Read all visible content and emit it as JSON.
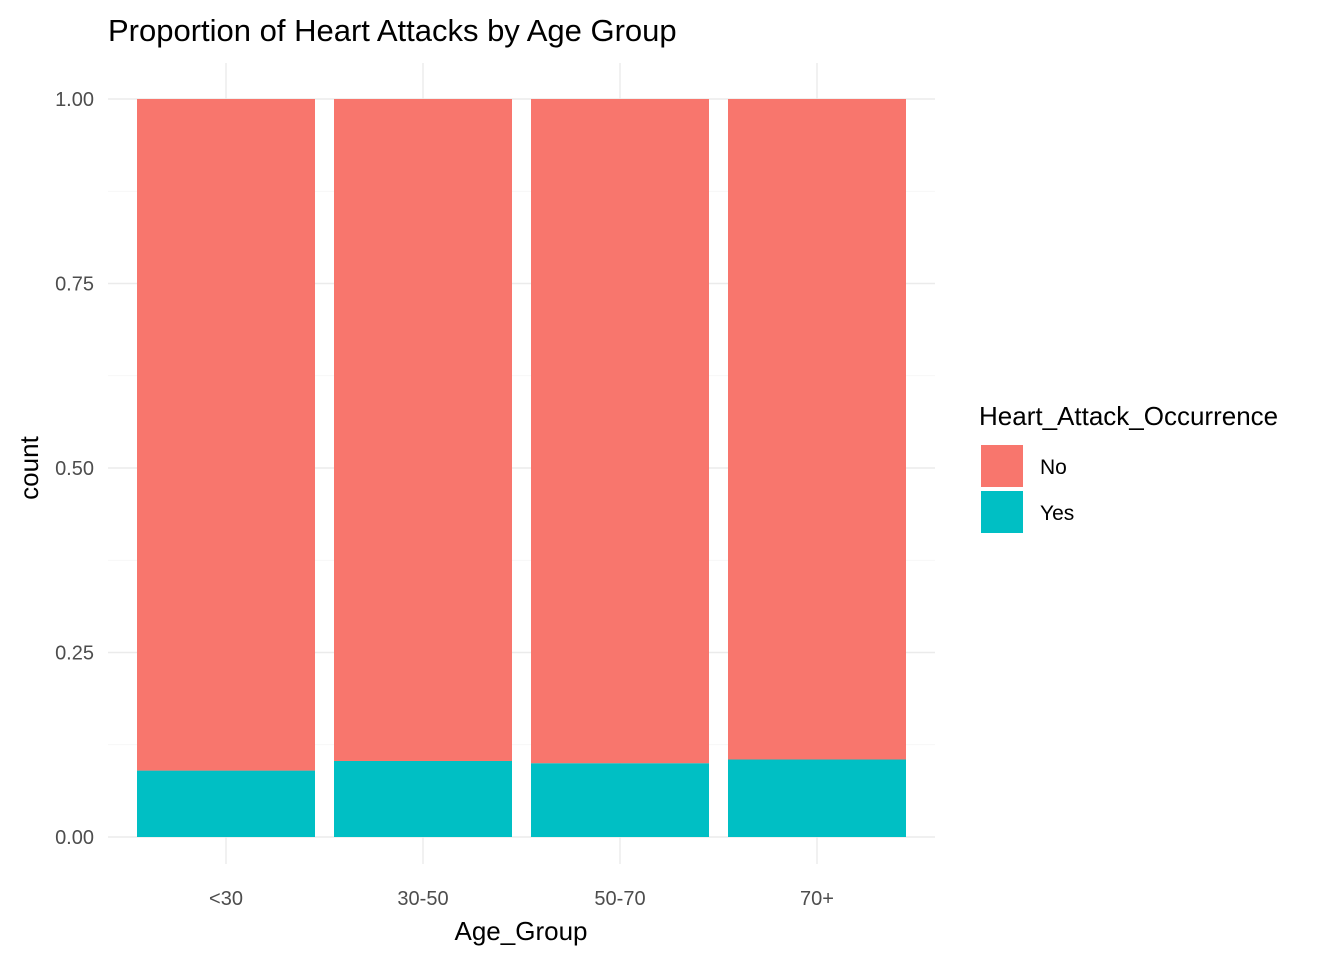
{
  "chart_data": {
    "type": "bar",
    "stacked": true,
    "position": "fill",
    "title": "Proportion of Heart Attacks by Age Group",
    "xlabel": "Age_Group",
    "ylabel": "count",
    "categories": [
      "<30",
      "30-50",
      "50-70",
      "70+"
    ],
    "series": [
      {
        "name": "No",
        "color": "#F8766D",
        "values": [
          0.91,
          0.897,
          0.9,
          0.895
        ]
      },
      {
        "name": "Yes",
        "color": "#00BFC4",
        "values": [
          0.09,
          0.103,
          0.1,
          0.105
        ]
      }
    ],
    "ylim": [
      0,
      1
    ],
    "yticks": [
      "0.00",
      "0.25",
      "0.50",
      "0.75",
      "1.00"
    ],
    "ytick_values": [
      0,
      0.25,
      0.5,
      0.75,
      1
    ],
    "grid": true,
    "legend": {
      "title": "Heart_Attack_Occurrence",
      "placement": "right",
      "entries": [
        {
          "label": "No",
          "color": "#F8766D"
        },
        {
          "label": "Yes",
          "color": "#00BFC4"
        }
      ]
    }
  }
}
